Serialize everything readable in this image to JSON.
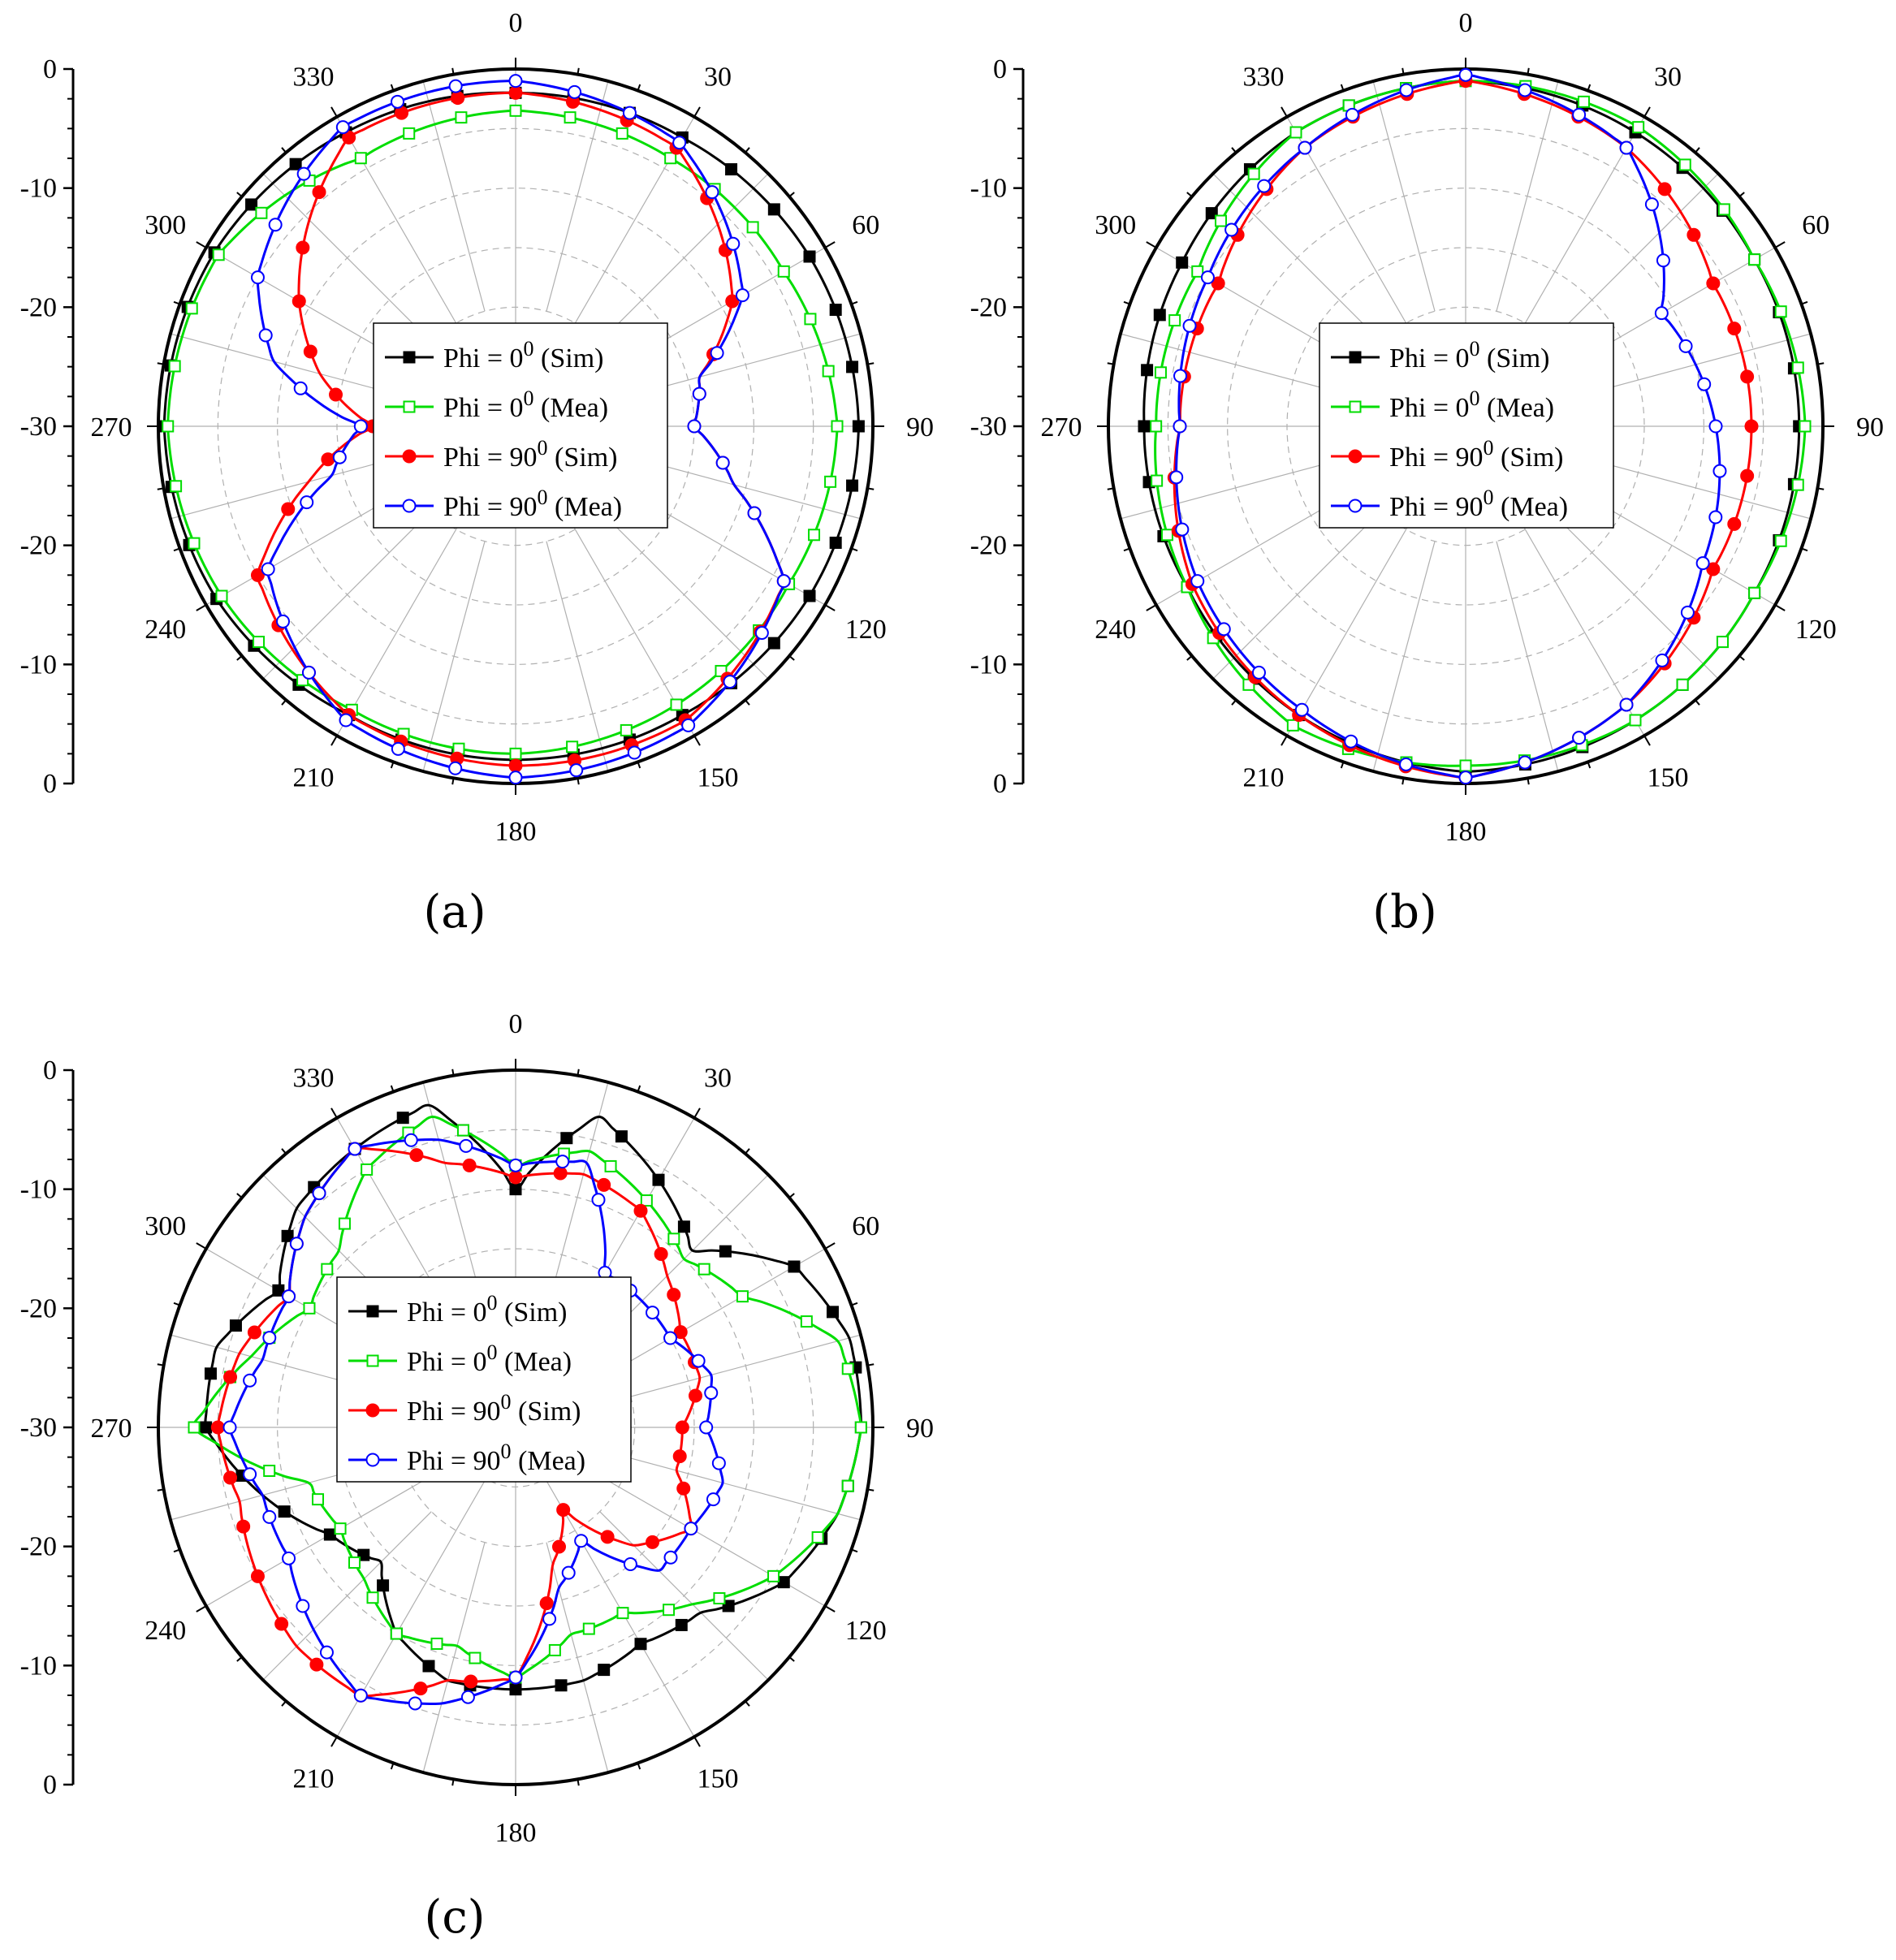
{
  "figure": {
    "panels": [
      {
        "id": "a",
        "label": "(a)"
      },
      {
        "id": "b",
        "label": "(b)"
      },
      {
        "id": "c",
        "label": "(c)"
      }
    ]
  },
  "colors": {
    "sim0": "#000000",
    "mea0": "#00dd00",
    "sim90": "#ff0000",
    "mea90": "#0000ff",
    "grid": "#b0b0b0"
  },
  "chart_data": [
    {
      "panel": "a",
      "type": "polar-line",
      "angle_unit": "deg",
      "angle_ticks": [
        0,
        30,
        60,
        90,
        120,
        150,
        180,
        210,
        240,
        270,
        300,
        330
      ],
      "angle_tick_labels": [
        "0",
        "30",
        "60",
        "90",
        "120",
        "150",
        "180",
        "210",
        "240",
        "270",
        "300",
        "330"
      ],
      "radial_range": [
        -30,
        0
      ],
      "radial_tick_labels": [
        "0",
        "-10",
        "-20",
        "-30",
        "-20",
        "-10",
        "0"
      ],
      "grid": true,
      "legend_position": "center",
      "legend": [
        {
          "key": "sim0",
          "prefix": "Phi = 0",
          "sup": "0",
          "suffix": " (Sim)"
        },
        {
          "key": "mea0",
          "prefix": "Phi = 0",
          "sup": "0",
          "suffix": " (Mea)"
        },
        {
          "key": "sim90",
          "prefix": "Phi = 90",
          "sup": "0",
          "suffix": " (Sim)"
        },
        {
          "key": "mea90",
          "prefix": "Phi = 90",
          "sup": "0",
          "suffix": " (Mea)"
        }
      ],
      "series": [
        {
          "key": "sim0",
          "name": "Phi = 0 (Sim)",
          "marker": "square-filled",
          "theta": [
            0,
            30,
            60,
            90,
            120,
            150,
            180,
            210,
            240,
            270,
            300,
            330
          ],
          "r": [
            -2,
            -2,
            -1.5,
            -1.2,
            -1.5,
            -2,
            -2,
            -2,
            -1,
            -0.5,
            -0.8,
            -1.5
          ]
        },
        {
          "key": "mea0",
          "name": "Phi = 0 (Mea)",
          "marker": "square-open",
          "theta": [
            0,
            30,
            60,
            90,
            120,
            150,
            180,
            210,
            240,
            270,
            300,
            330
          ],
          "r": [
            -3.5,
            -4,
            -4,
            -3,
            -3.5,
            -3,
            -2.5,
            -2.5,
            -1.5,
            -0.8,
            -1.2,
            -4
          ]
        },
        {
          "key": "sim90",
          "name": "Phi = 90 (Sim)",
          "marker": "circle-filled",
          "theta": [
            0,
            30,
            60,
            75,
            90,
            105,
            120,
            150,
            180,
            210,
            240,
            255,
            270,
            285,
            300,
            330
          ],
          "r": [
            -2,
            -3,
            -9,
            -14,
            -15,
            -11,
            -4,
            -1.5,
            -1.5,
            -2,
            -5,
            -12,
            -18,
            -13,
            -9,
            -2
          ]
        },
        {
          "key": "mea90",
          "name": "Phi = 90 (Mea)",
          "marker": "circle-open",
          "theta": [
            0,
            30,
            60,
            75,
            90,
            105,
            120,
            150,
            180,
            210,
            240,
            255,
            270,
            285,
            300,
            330
          ],
          "r": [
            -1,
            -2.5,
            -8,
            -14,
            -15,
            -11,
            -4,
            -1,
            -0.5,
            -1.5,
            -6,
            -14,
            -17,
            -9,
            -5,
            -1
          ]
        }
      ]
    },
    {
      "panel": "b",
      "type": "polar-line",
      "angle_unit": "deg",
      "angle_ticks": [
        0,
        30,
        60,
        90,
        120,
        150,
        180,
        210,
        240,
        270,
        300,
        330
      ],
      "angle_tick_labels": [
        "0",
        "30",
        "60",
        "90",
        "120",
        "150",
        "180",
        "210",
        "240",
        "270",
        "300",
        "330"
      ],
      "radial_range": [
        -30,
        0
      ],
      "radial_tick_labels": [
        "0",
        "-10",
        "-20",
        "-30",
        "-20",
        "-10",
        "0"
      ],
      "grid": true,
      "legend_position": "center",
      "legend": [
        {
          "key": "sim0",
          "prefix": "Phi = 0",
          "sup": "0",
          "suffix": " (Sim)"
        },
        {
          "key": "mea0",
          "prefix": "Phi = 0",
          "sup": "0",
          "suffix": " (Mea)"
        },
        {
          "key": "sim90",
          "prefix": "Phi = 90",
          "sup": "0",
          "suffix": " (Sim)"
        },
        {
          "key": "mea90",
          "prefix": "Phi = 90",
          "sup": "0",
          "suffix": " (Mea)"
        }
      ],
      "series": [
        {
          "key": "sim0",
          "name": "Phi = 0 (Sim)",
          "marker": "square-filled",
          "theta": [
            0,
            30,
            60,
            90,
            120,
            150,
            180,
            210,
            240,
            270,
            300,
            330
          ],
          "r": [
            -1,
            -1.5,
            -2,
            -2,
            -2,
            -1.5,
            -1,
            -2,
            -3,
            -3,
            -2.5,
            -1.5
          ]
        },
        {
          "key": "mea0",
          "name": "Phi = 0 (Mea)",
          "marker": "square-open",
          "theta": [
            0,
            30,
            60,
            90,
            120,
            150,
            180,
            210,
            240,
            270,
            300,
            330
          ],
          "r": [
            -1,
            -1,
            -2,
            -1.5,
            -2,
            -1.5,
            -1.5,
            -1,
            -3,
            -4,
            -4,
            -1.5
          ]
        },
        {
          "key": "sim90",
          "name": "Phi = 90 (Sim)",
          "marker": "circle-filled",
          "theta": [
            0,
            30,
            60,
            90,
            120,
            150,
            180,
            210,
            240,
            270,
            300,
            330
          ],
          "r": [
            -1,
            -3,
            -6,
            -6,
            -6,
            -3,
            -0.5,
            -2,
            -3.5,
            -6,
            -6,
            -3
          ]
        },
        {
          "key": "mea90",
          "name": "Phi = 90 (Mea)",
          "marker": "circle-open",
          "theta": [
            0,
            30,
            60,
            90,
            120,
            150,
            180,
            210,
            240,
            270,
            300,
            330
          ],
          "r": [
            -0.5,
            -3,
            -11,
            -9,
            -7,
            -3,
            -0.5,
            -2.5,
            -4,
            -6,
            -5,
            -3
          ]
        }
      ]
    },
    {
      "panel": "c",
      "type": "polar-line",
      "angle_unit": "deg",
      "angle_ticks": [
        0,
        30,
        60,
        90,
        120,
        150,
        180,
        210,
        240,
        270,
        300,
        330
      ],
      "angle_tick_labels": [
        "0",
        "30",
        "60",
        "90",
        "120",
        "150",
        "180",
        "210",
        "240",
        "270",
        "300",
        "330"
      ],
      "radial_range": [
        -30,
        0
      ],
      "radial_tick_labels": [
        "0",
        "-10",
        "-20",
        "-30",
        "-20",
        "-10",
        "0"
      ],
      "grid": true,
      "legend_position": "center-left",
      "legend": [
        {
          "key": "sim0",
          "prefix": "Phi = 0",
          "sup": "0",
          "suffix": " (Sim)"
        },
        {
          "key": "mea0",
          "prefix": "Phi = 0",
          "sup": "0",
          "suffix": " (Mea)"
        },
        {
          "key": "sim90",
          "prefix": "Phi = 90",
          "sup": "0",
          "suffix": " (Sim)"
        },
        {
          "key": "mea90",
          "prefix": "Phi = 90",
          "sup": "0",
          "suffix": " (Mea)"
        }
      ],
      "series": [
        {
          "key": "sim0",
          "name": "Phi = 0 (Sim)",
          "marker": "square-filled",
          "theta": [
            0,
            15,
            30,
            45,
            60,
            75,
            90,
            105,
            120,
            135,
            150,
            165,
            180,
            195,
            210,
            225,
            240,
            255,
            270,
            285,
            300,
            315,
            330,
            345
          ],
          "r": [
            -10,
            -3,
            -6,
            -9,
            -3,
            -1,
            -1,
            -2,
            -4,
            -8,
            -9,
            -8,
            -8,
            -8,
            -10,
            -14,
            -12,
            -8,
            -4,
            -4,
            -7,
            -4,
            -3,
            -2
          ]
        },
        {
          "key": "mea0",
          "name": "Phi = 0 (Mea)",
          "marker": "square-open",
          "theta": [
            0,
            15,
            30,
            45,
            60,
            75,
            90,
            105,
            120,
            135,
            150,
            165,
            180,
            195,
            210,
            225,
            240,
            255,
            270,
            285,
            300,
            315,
            330,
            345
          ],
          "r": [
            -8,
            -6,
            -8,
            -10,
            -8,
            -2,
            -1,
            -2,
            -5,
            -9,
            -12,
            -12,
            -9,
            -11,
            -10,
            -12,
            -13,
            -12,
            -3,
            -7,
            -10,
            -9,
            -5,
            -3
          ]
        },
        {
          "key": "sim90",
          "name": "Phi = 90 (Sim)",
          "marker": "circle-filled",
          "theta": [
            0,
            15,
            30,
            45,
            60,
            75,
            90,
            105,
            120,
            135,
            150,
            165,
            180,
            195,
            210,
            225,
            240,
            255,
            270,
            285,
            300,
            315,
            330,
            345
          ],
          "r": [
            -9,
            -8,
            -9,
            -12,
            -14,
            -14,
            -16,
            -16,
            -13,
            -16,
            -22,
            -18,
            -9,
            -8,
            -4,
            -4,
            -5,
            -6,
            -5,
            -6,
            -8,
            -5,
            -3,
            -7
          ]
        },
        {
          "key": "mea90",
          "name": "Phi = 90 (Mea)",
          "marker": "circle-open",
          "theta": [
            0,
            15,
            30,
            45,
            60,
            75,
            90,
            105,
            120,
            135,
            150,
            165,
            180,
            195,
            210,
            225,
            240,
            255,
            270,
            285,
            300,
            315,
            330,
            345
          ],
          "r": [
            -8,
            -7,
            -15,
            -15,
            -15,
            -13,
            -14,
            -12,
            -13,
            -13,
            -19,
            -16,
            -9,
            -6,
            -4,
            -6,
            -8,
            -8,
            -6,
            -8,
            -8,
            -5,
            -3,
            -5
          ]
        }
      ]
    }
  ]
}
